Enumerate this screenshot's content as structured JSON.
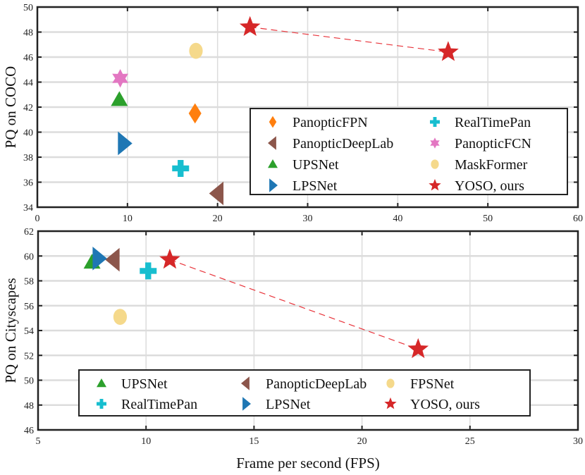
{
  "chart_data": [
    {
      "type": "scatter",
      "title": "",
      "xlabel": "",
      "ylabel": "PQ on COCO",
      "xlim": [
        0,
        60
      ],
      "ylim": [
        34,
        50
      ],
      "xticks": [
        0,
        10,
        20,
        30,
        40,
        50,
        60
      ],
      "yticks": [
        34,
        36,
        38,
        40,
        42,
        44,
        46,
        48,
        50
      ],
      "grid": true,
      "legend_position": "bottom-right",
      "legend_columns": 2,
      "series": [
        {
          "name": "PanopticFPN",
          "marker": "diamond",
          "color": "#ff7f0e",
          "points": [
            [
              17.5,
              41.5
            ]
          ]
        },
        {
          "name": "PanopticDeepLab",
          "marker": "triangle-left",
          "color": "#8c564b",
          "points": [
            [
              20.0,
              35.1
            ]
          ]
        },
        {
          "name": "UPSNet",
          "marker": "triangle-up",
          "color": "#2ca02c",
          "points": [
            [
              9.1,
              42.6
            ]
          ]
        },
        {
          "name": "LPSNet",
          "marker": "triangle-right",
          "color": "#1f77b4",
          "points": [
            [
              9.6,
              39.1
            ]
          ]
        },
        {
          "name": "RealTimePan",
          "marker": "plus",
          "color": "#17becf",
          "points": [
            [
              15.9,
              37.1
            ]
          ]
        },
        {
          "name": "PanopticFCN",
          "marker": "hexagram",
          "color": "#e377c2",
          "points": [
            [
              9.2,
              44.3
            ]
          ]
        },
        {
          "name": "MaskFormer",
          "marker": "circle",
          "color": "#f5d98b",
          "points": [
            [
              17.6,
              46.5
            ]
          ]
        },
        {
          "name": "YOSO, ours",
          "marker": "star",
          "color": "#d62728",
          "points": [
            [
              23.6,
              48.4
            ],
            [
              45.6,
              46.4
            ]
          ],
          "dashed_line": true
        }
      ]
    },
    {
      "type": "scatter",
      "title": "",
      "xlabel": "Frame per second (FPS)",
      "ylabel": "PQ on Cityscapes",
      "xlim": [
        5,
        30
      ],
      "ylim": [
        46,
        62
      ],
      "xticks": [
        5,
        10,
        15,
        20,
        25,
        30
      ],
      "yticks": [
        46,
        48,
        50,
        52,
        54,
        56,
        58,
        60,
        62
      ],
      "grid": true,
      "legend_position": "bottom",
      "legend_columns": 3,
      "series": [
        {
          "name": "UPSNet",
          "marker": "triangle-up",
          "color": "#2ca02c",
          "points": [
            [
              7.5,
              59.5
            ]
          ]
        },
        {
          "name": "RealTimePan",
          "marker": "plus",
          "color": "#17becf",
          "points": [
            [
              10.1,
              58.8
            ]
          ]
        },
        {
          "name": "PanopticDeepLab",
          "marker": "triangle-left",
          "color": "#8c564b",
          "points": [
            [
              8.5,
              59.7
            ]
          ]
        },
        {
          "name": "LPSNet",
          "marker": "triangle-right",
          "color": "#1f77b4",
          "points": [
            [
              7.8,
              59.8
            ]
          ]
        },
        {
          "name": "FPSNet",
          "marker": "circle",
          "color": "#f5d98b",
          "points": [
            [
              8.8,
              55.1
            ]
          ]
        },
        {
          "name": "YOSO, ours",
          "marker": "star",
          "color": "#d62728",
          "points": [
            [
              11.1,
              59.7
            ],
            [
              22.6,
              52.5
            ]
          ],
          "dashed_line": true
        }
      ]
    }
  ]
}
